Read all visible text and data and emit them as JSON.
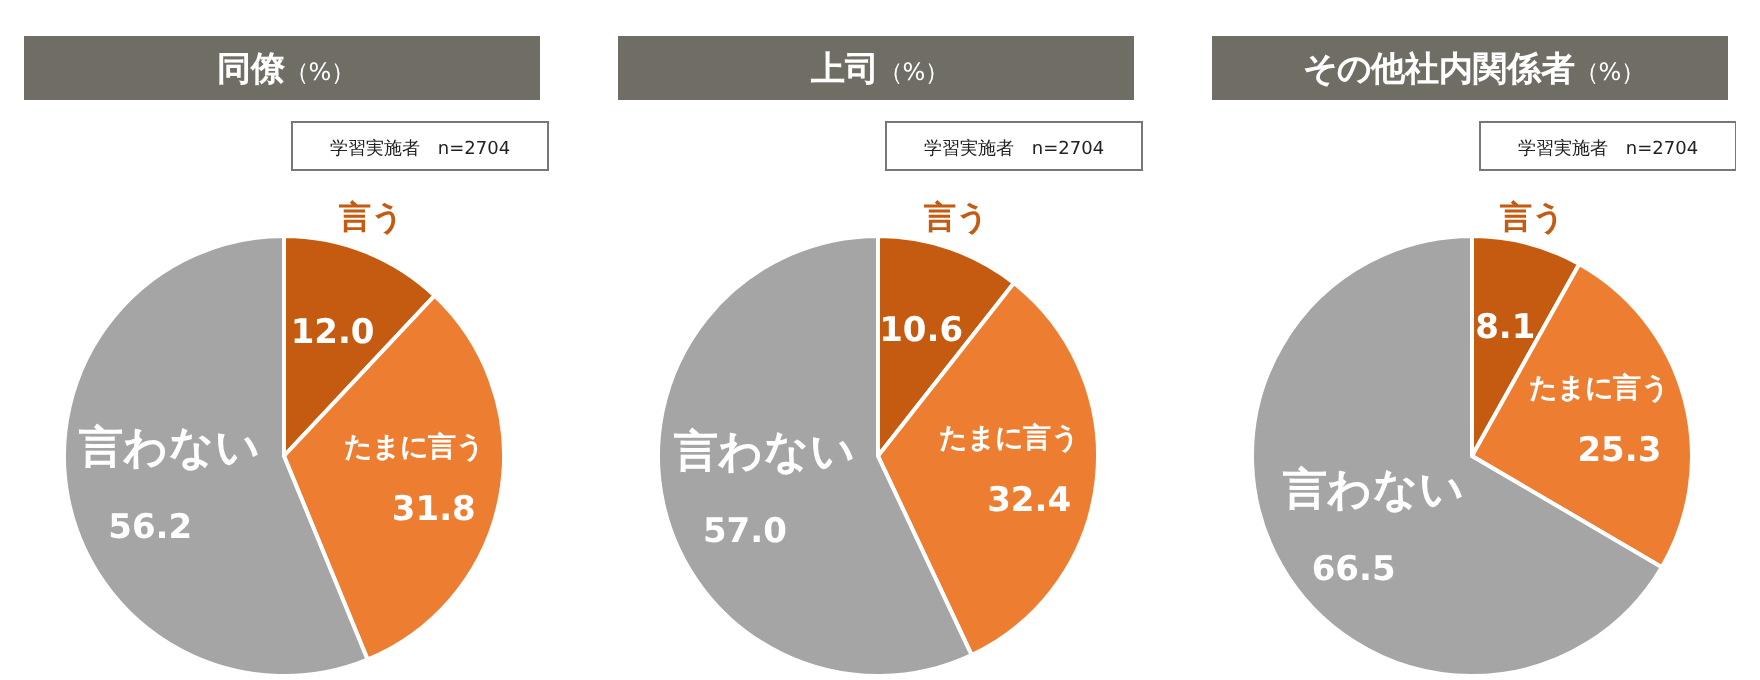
{
  "chart_data": [
    {
      "type": "pie",
      "title": "同僚",
      "subtitle": "（%）",
      "annotations": [
        "学習実施者　n=2704"
      ],
      "categories": [
        "言う",
        "たまに言う",
        "言わない"
      ],
      "values": [
        12.0,
        31.8,
        56.2
      ],
      "value_labels": [
        "12.0",
        "31.8",
        "56.2"
      ],
      "colors": [
        "#c55a11",
        "#ed7d31",
        "#a5a5a5"
      ]
    },
    {
      "type": "pie",
      "title": "上司",
      "subtitle": "（%）",
      "annotations": [
        "学習実施者　n=2704"
      ],
      "categories": [
        "言う",
        "たまに言う",
        "言わない"
      ],
      "values": [
        10.6,
        32.4,
        57.0
      ],
      "value_labels": [
        "10.6",
        "32.4",
        "57.0"
      ],
      "colors": [
        "#c55a11",
        "#ed7d31",
        "#a5a5a5"
      ]
    },
    {
      "type": "pie",
      "title": "その他社内関係者",
      "subtitle": "（%）",
      "annotations": [
        "学習実施者　n=2704"
      ],
      "categories": [
        "言う",
        "たまに言う",
        "言わない"
      ],
      "values": [
        8.1,
        25.3,
        66.5
      ],
      "value_labels": [
        "8.1",
        "25.3",
        "66.5"
      ],
      "colors": [
        "#c55a11",
        "#ed7d31",
        "#a5a5a5"
      ]
    }
  ]
}
